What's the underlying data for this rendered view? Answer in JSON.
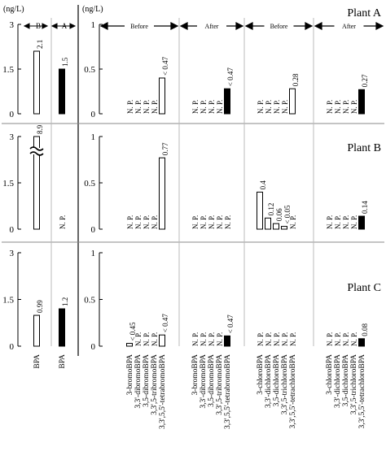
{
  "chart_data": {
    "type": "bar",
    "unit": "(ng/L)",
    "colors": {
      "before": "#ffffff",
      "after": "#000000",
      "edge": "#000000"
    },
    "plants": [
      "Plant A",
      "Plant B",
      "Plant C"
    ],
    "left_panel": {
      "ylim": [
        0,
        3
      ],
      "ytick_labels": [
        "0",
        "1.5",
        "3"
      ],
      "header_labels": [
        "B",
        "A"
      ],
      "categories": [
        "BPA",
        "BPA"
      ],
      "rows": [
        {
          "before": {
            "value": 2.1,
            "label": "2.1"
          },
          "after": {
            "value": 1.5,
            "label": "1.5"
          }
        },
        {
          "before": {
            "value": 8.9,
            "label": "8.9",
            "broken_axis": true
          },
          "after": {
            "value": 0,
            "label": "N. P."
          }
        },
        {
          "before": {
            "value": 0.99,
            "label": "0.99"
          },
          "after": {
            "value": 1.2,
            "label": "1.2"
          }
        }
      ]
    },
    "right_panel": {
      "ylim": [
        0,
        1
      ],
      "ytick_labels": [
        "0",
        "0.5",
        "1"
      ],
      "groups": [
        {
          "name": "Before",
          "state": "before",
          "categories": [
            "3-bromoBPA",
            "3,3'-dibromoBPA",
            "3,5-dibromoBPA",
            "3,3',5-tribromoBPA",
            "3,3',5,5'-tetrabromoBPA"
          ]
        },
        {
          "name": "After",
          "state": "after",
          "categories": [
            "3-bromoBPA",
            "3,3'-dibromoBPA",
            "3,5-dibromoBPA",
            "3,3',5-tribromoBPA",
            "3,3',5,5'-tetrabromoBPA"
          ]
        },
        {
          "name": "Before",
          "state": "before",
          "categories": [
            "3-chloroBPA",
            "3,3'-dichloroBPA",
            "3,5-dichloroBPA",
            "3,3',5-trichloroBPA",
            "3,3',5,5'-tetrachloroBPA"
          ]
        },
        {
          "name": "After",
          "state": "after",
          "categories": [
            "3-chloroBPA",
            "3,3'-dichloroBPA",
            "3,5-dichloroBPA",
            "3,3',5-trichloroBPA",
            "3,3',5,5'-tetrachloroBPA"
          ]
        }
      ],
      "rows": [
        [
          [
            null,
            null,
            null,
            null,
            {
              "value": 0.4,
              "label": "< 0.47"
            }
          ],
          [
            null,
            null,
            null,
            null,
            {
              "value": 0.28,
              "label": "< 0.47"
            }
          ],
          [
            null,
            null,
            null,
            null,
            {
              "value": 0.28,
              "label": "0.28"
            }
          ],
          [
            null,
            null,
            null,
            null,
            {
              "value": 0.27,
              "label": "0.27"
            }
          ]
        ],
        [
          [
            null,
            null,
            null,
            null,
            {
              "value": 0.77,
              "label": "0.77"
            }
          ],
          [
            null,
            null,
            null,
            null,
            null
          ],
          [
            {
              "value": 0.4,
              "label": "0.4"
            },
            {
              "value": 0.12,
              "label": "0.12"
            },
            {
              "value": 0.06,
              "label": "0.06"
            },
            {
              "value": 0.03,
              "label": "< 0.05"
            },
            null
          ],
          [
            null,
            null,
            null,
            null,
            {
              "value": 0.14,
              "label": "0.14"
            }
          ]
        ],
        [
          [
            {
              "value": 0.03,
              "label": "< 0.45"
            },
            null,
            null,
            null,
            {
              "value": 0.12,
              "label": "< 0.47"
            }
          ],
          [
            null,
            null,
            null,
            null,
            {
              "value": 0.11,
              "label": "< 0.47"
            }
          ],
          [
            null,
            null,
            null,
            null,
            null
          ],
          [
            null,
            null,
            null,
            null,
            {
              "value": 0.08,
              "label": "0.08"
            }
          ]
        ]
      ],
      "not_present_label": "N. P."
    }
  }
}
